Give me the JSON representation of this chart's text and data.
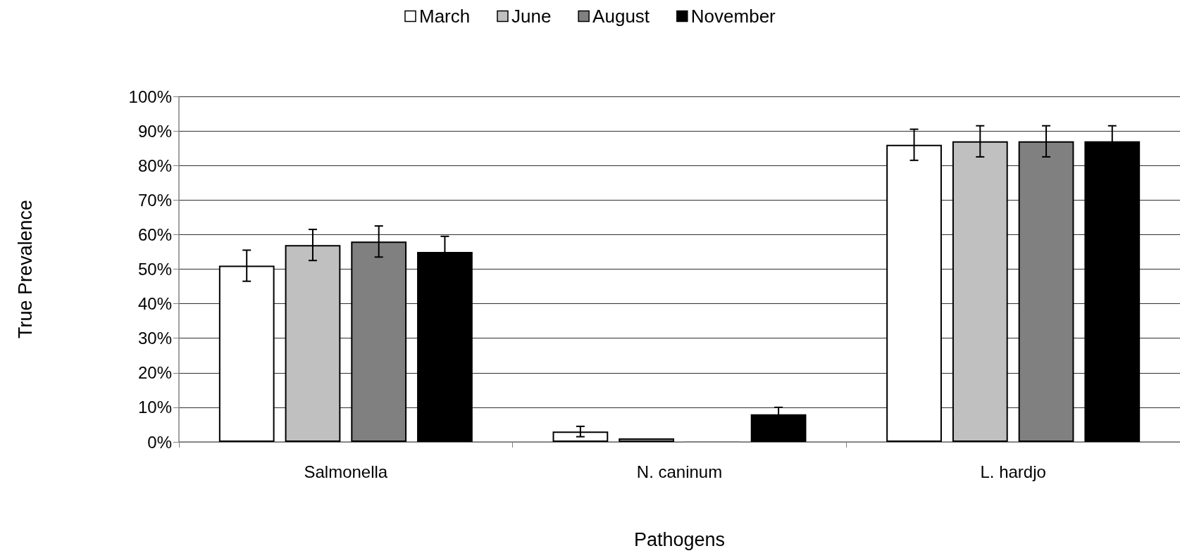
{
  "chart_data": {
    "type": "bar",
    "xlabel": "Pathogens",
    "ylabel": "True Prevalence",
    "categories": [
      "Salmonella",
      "N. caninum",
      "L. hardjo"
    ],
    "series": [
      {
        "name": "March",
        "color": "#ffffff",
        "values": [
          51,
          3,
          86
        ],
        "errors": [
          4.5,
          1.5,
          4.5
        ]
      },
      {
        "name": "June",
        "color": "#c0c0c0",
        "values": [
          57,
          1,
          87
        ],
        "errors": [
          4.5,
          null,
          4.5
        ]
      },
      {
        "name": "August",
        "color": "#808080",
        "values": [
          58,
          0,
          87
        ],
        "errors": [
          4.5,
          null,
          4.5
        ]
      },
      {
        "name": "November",
        "color": "#000000",
        "values": [
          55,
          8,
          87
        ],
        "errors": [
          4.5,
          2,
          4.5
        ]
      }
    ],
    "ylim": [
      0,
      100
    ],
    "yticks": [
      {
        "value": 0,
        "label": "0%"
      },
      {
        "value": 10,
        "label": "10%"
      },
      {
        "value": 20,
        "label": "20%"
      },
      {
        "value": 30,
        "label": "30%"
      },
      {
        "value": 40,
        "label": "40%"
      },
      {
        "value": 50,
        "label": "50%"
      },
      {
        "value": 60,
        "label": "60%"
      },
      {
        "value": 70,
        "label": "70%"
      },
      {
        "value": 80,
        "label": "80%"
      },
      {
        "value": 90,
        "label": "90%"
      },
      {
        "value": 100,
        "label": "100%"
      }
    ],
    "grid": "y",
    "legend": "top"
  }
}
